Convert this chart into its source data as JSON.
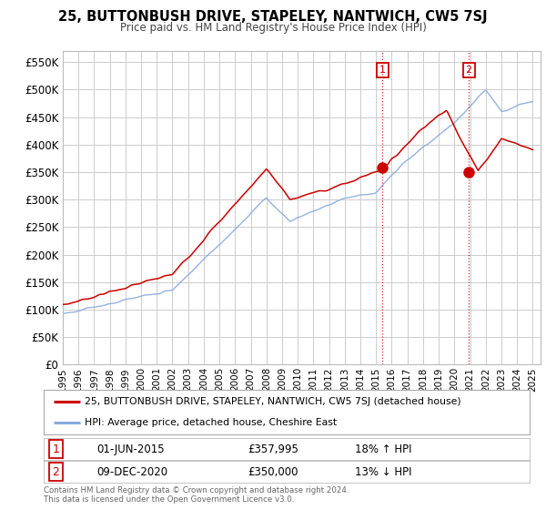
{
  "title": "25, BUTTONBUSH DRIVE, STAPELEY, NANTWICH, CW5 7SJ",
  "subtitle": "Price paid vs. HM Land Registry's House Price Index (HPI)",
  "ylabel_ticks": [
    "£0",
    "£50K",
    "£100K",
    "£150K",
    "£200K",
    "£250K",
    "£300K",
    "£350K",
    "£400K",
    "£450K",
    "£500K",
    "£550K"
  ],
  "ytick_vals": [
    0,
    50000,
    100000,
    150000,
    200000,
    250000,
    300000,
    350000,
    400000,
    450000,
    500000,
    550000
  ],
  "ylim": [
    0,
    570000
  ],
  "xlim_start": 1995.0,
  "xlim_end": 2025.5,
  "sale1": {
    "date_label": "01-JUN-2015",
    "price": 357995,
    "hpi_pct": "18%",
    "hpi_dir": "↑",
    "year": 2015.42,
    "marker_num": "1"
  },
  "sale2": {
    "date_label": "09-DEC-2020",
    "price": 350000,
    "hpi_pct": "13%",
    "hpi_dir": "↓",
    "marker_num": "2",
    "year": 2020.92
  },
  "legend_line1": "25, BUTTONBUSH DRIVE, STAPELEY, NANTWICH, CW5 7SJ (detached house)",
  "legend_line2": "HPI: Average price, detached house, Cheshire East",
  "footnote": "Contains HM Land Registry data © Crown copyright and database right 2024.\nThis data is licensed under the Open Government Licence v3.0.",
  "red_color": "#cc0000",
  "blue_color": "#88aadd",
  "bg_color": "#ffffff",
  "grid_color": "#cccccc"
}
